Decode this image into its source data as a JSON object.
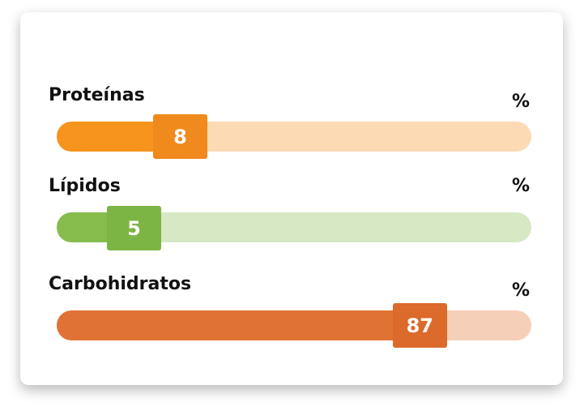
{
  "nutrients": [
    {
      "label": "Proteínas",
      "unit": "%",
      "value": "8",
      "fraction": 0.08,
      "fill_color": "#F7941D",
      "track_color": "#FCDAB4",
      "thumb_color": "#F08A1C"
    },
    {
      "label": "Lípidos",
      "unit": "%",
      "value": "5",
      "fraction": 0.05,
      "fill_color": "#86BC4C",
      "track_color": "#D6E8C4",
      "thumb_color": "#7DB544"
    },
    {
      "label": "Carbohidratos",
      "unit": "%",
      "value": "87",
      "fraction": 0.87,
      "fill_color": "#E07234",
      "track_color": "#F5CFB8",
      "thumb_color": "#DB6A2B"
    }
  ]
}
